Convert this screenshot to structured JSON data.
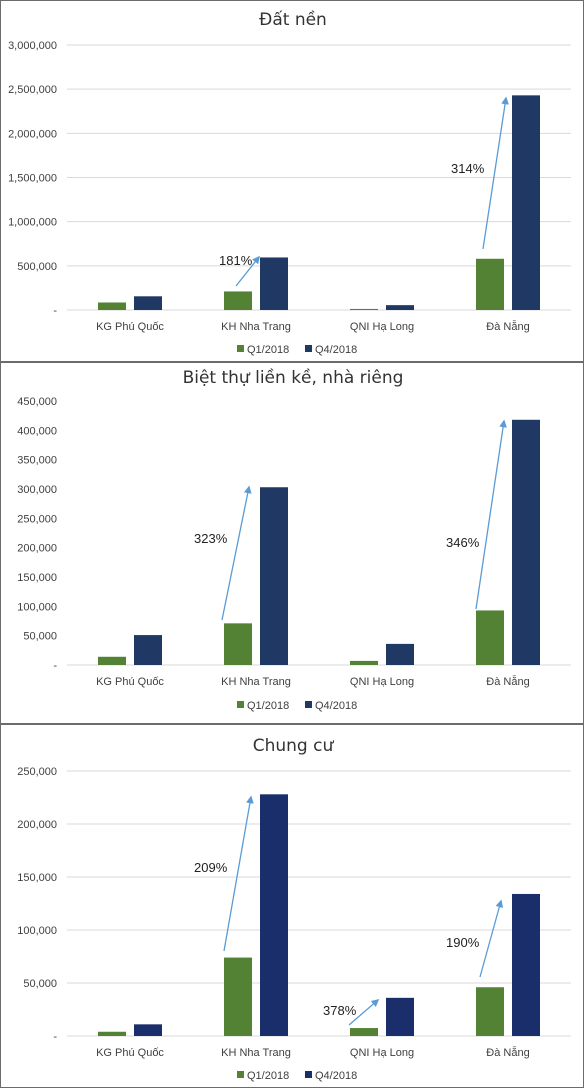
{
  "colors": {
    "q1": "#548235",
    "q4_panel1": "#203864",
    "q4_panel2": "#203864",
    "q4_panel3": "#1a2e6b",
    "arrow": "#5b9bd5"
  },
  "chart_data": [
    {
      "type": "bar",
      "title": "Đất nền",
      "categories": [
        "KG Phú Quốc",
        "KH Nha Trang",
        "QNI Hạ Long",
        "Đà Nẵng"
      ],
      "series": [
        {
          "name": "Q1/2018",
          "values": [
            85000,
            210000,
            12000,
            580000
          ]
        },
        {
          "name": "Q4/2018",
          "values": [
            155000,
            595000,
            55000,
            2430000
          ]
        }
      ],
      "ylim": [
        0,
        3000000
      ],
      "yticks": [
        0,
        500000,
        1000000,
        1500000,
        2000000,
        2500000,
        3000000
      ],
      "ytick_labels": [
        "-",
        "500,000",
        "1,000,000",
        "1,500,000",
        "2,000,000",
        "2,500,000",
        "3,000,000"
      ],
      "grid": true,
      "legend": "bottom",
      "annotations": [
        {
          "category": "KH Nha Trang",
          "text": "181%"
        },
        {
          "category": "Đà Nẵng",
          "text": "314%"
        }
      ]
    },
    {
      "type": "bar",
      "title": "Biệt thự liền kề, nhà riêng",
      "categories": [
        "KG Phú Quốc",
        "KH Nha Trang",
        "QNI Hạ Long",
        "Đà Nẵng"
      ],
      "series": [
        {
          "name": "Q1/2018",
          "values": [
            14000,
            71000,
            7000,
            93000
          ]
        },
        {
          "name": "Q4/2018",
          "values": [
            51000,
            303000,
            36000,
            418000
          ]
        }
      ],
      "ylim": [
        0,
        450000
      ],
      "yticks": [
        0,
        50000,
        100000,
        150000,
        200000,
        250000,
        300000,
        350000,
        400000,
        450000
      ],
      "ytick_labels": [
        "-",
        "50,000",
        "100,000",
        "150,000",
        "200,000",
        "250,000",
        "300,000",
        "350,000",
        "400,000",
        "450,000"
      ],
      "grid": false,
      "legend": "bottom",
      "annotations": [
        {
          "category": "KH Nha Trang",
          "text": "323%"
        },
        {
          "category": "Đà Nẵng",
          "text": "346%"
        }
      ]
    },
    {
      "type": "bar",
      "title": "Chung cư",
      "categories": [
        "KG Phú Quốc",
        "KH Nha Trang",
        "QNI Hạ Long",
        "Đà Nẵng"
      ],
      "series": [
        {
          "name": "Q1/2018",
          "values": [
            4000,
            74000,
            7500,
            46000
          ]
        },
        {
          "name": "Q4/2018",
          "values": [
            11000,
            228000,
            36000,
            134000
          ]
        }
      ],
      "ylim": [
        0,
        250000
      ],
      "yticks": [
        0,
        50000,
        100000,
        150000,
        200000,
        250000
      ],
      "ytick_labels": [
        "-",
        "50,000",
        "100,000",
        "150,000",
        "200,000",
        "250,000"
      ],
      "grid": true,
      "legend": "bottom",
      "annotations": [
        {
          "category": "KH Nha Trang",
          "text": "209%"
        },
        {
          "category": "QNI Hạ Long",
          "text": "378%"
        },
        {
          "category": "Đà Nẵng",
          "text": "190%"
        }
      ]
    }
  ]
}
